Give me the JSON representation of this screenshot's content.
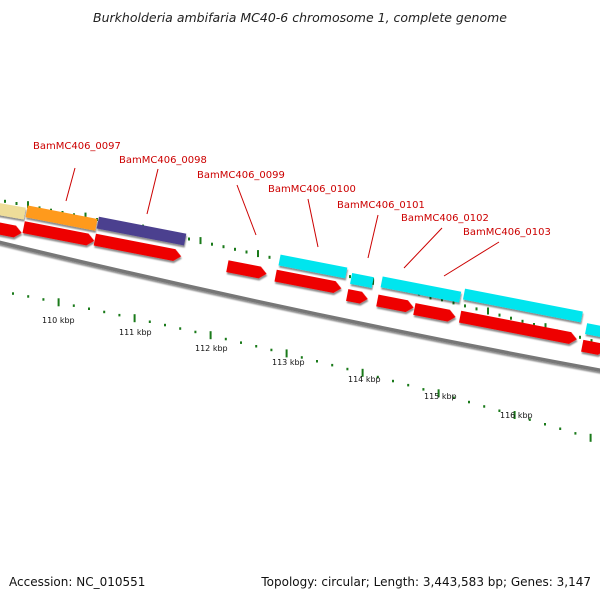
{
  "title": "Burkholderia ambifaria MC40-6 chromosome 1, complete genome",
  "footer": {
    "accession": "Accession: NC_010551",
    "summary": "Topology: circular; Length: 3,443,583 bp; Genes: 3,147"
  },
  "colors": {
    "gene_label": "#cc0000",
    "cds_red": "#ee0000",
    "trna_cyan": "#00e5ee",
    "feature_orange": "#ff9a1a",
    "feature_purple": "#4b3f8f",
    "feature_khaki": "#eedd99",
    "backbone": "#777777",
    "tick_green": "#1a7a1a"
  },
  "gene_labels": [
    "BamMC406_0097",
    "BamMC406_0098",
    "BamMC406_0099",
    "BamMC406_0100",
    "BamMC406_0101",
    "BamMC406_0102",
    "BamMC406_0103"
  ],
  "position_labels": [
    "110 kbp",
    "111 kbp",
    "112 kbp",
    "113 kbp",
    "114 kbp",
    "115 kbp",
    "116 kbp"
  ]
}
